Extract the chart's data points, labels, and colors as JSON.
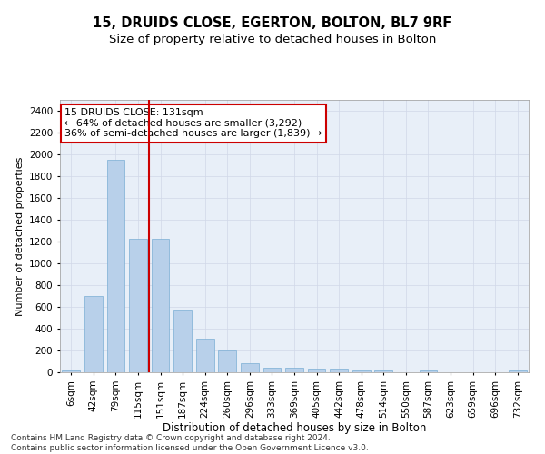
{
  "title1": "15, DRUIDS CLOSE, EGERTON, BOLTON, BL7 9RF",
  "title2": "Size of property relative to detached houses in Bolton",
  "xlabel": "Distribution of detached houses by size in Bolton",
  "ylabel": "Number of detached properties",
  "categories": [
    "6sqm",
    "42sqm",
    "79sqm",
    "115sqm",
    "151sqm",
    "187sqm",
    "224sqm",
    "260sqm",
    "296sqm",
    "333sqm",
    "369sqm",
    "405sqm",
    "442sqm",
    "478sqm",
    "514sqm",
    "550sqm",
    "587sqm",
    "623sqm",
    "659sqm",
    "696sqm",
    "732sqm"
  ],
  "values": [
    15,
    700,
    1950,
    1225,
    1225,
    575,
    305,
    200,
    80,
    45,
    38,
    35,
    30,
    18,
    15,
    0,
    20,
    0,
    0,
    0,
    15
  ],
  "bar_color": "#b8d0ea",
  "bar_edge_color": "#7aadd4",
  "vline_color": "#cc0000",
  "vline_x": 3.48,
  "annotation_text": "15 DRUIDS CLOSE: 131sqm\n← 64% of detached houses are smaller (3,292)\n36% of semi-detached houses are larger (1,839) →",
  "annotation_box_color": "#ffffff",
  "annotation_box_edge_color": "#cc0000",
  "ylim": [
    0,
    2500
  ],
  "yticks": [
    0,
    200,
    400,
    600,
    800,
    1000,
    1200,
    1400,
    1600,
    1800,
    2000,
    2200,
    2400
  ],
  "grid_color": "#d0d8e8",
  "bg_color": "#e8eff8",
  "footer": "Contains HM Land Registry data © Crown copyright and database right 2024.\nContains public sector information licensed under the Open Government Licence v3.0.",
  "title1_fontsize": 10.5,
  "title2_fontsize": 9.5,
  "xlabel_fontsize": 8.5,
  "ylabel_fontsize": 8,
  "tick_fontsize": 7.5,
  "annotation_fontsize": 8,
  "footer_fontsize": 6.5
}
